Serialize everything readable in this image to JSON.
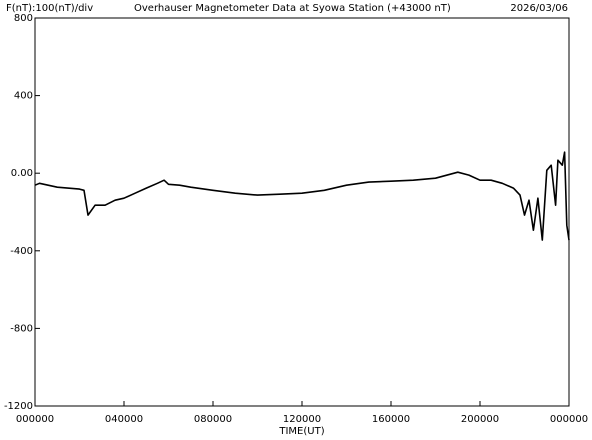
{
  "chart_data": {
    "type": "line",
    "unit_note": "F(nT):100(nT)/div",
    "title": "Overhauser Magnetometer Data at Syowa Station (+43000 nT)",
    "date": "2026/03/06",
    "x_label": "TIME(UT)",
    "x": [
      0,
      0.2,
      1,
      2,
      2.2,
      2.38,
      2.7,
      3.15,
      3.6,
      4,
      4.5,
      5,
      5.5,
      5.8,
      6,
      6.5,
      7,
      8,
      9,
      10,
      11,
      12,
      13,
      14,
      15,
      16,
      17,
      18,
      19,
      19.5,
      20,
      20.5,
      21,
      21.5,
      21.8,
      22,
      22.2,
      22.4,
      22.6,
      22.8,
      23,
      23.2,
      23.4,
      23.5,
      23.7,
      23.8,
      23.9,
      24
    ],
    "series": [
      {
        "color": "#000000",
        "values": [
          -62,
          -52,
          -72,
          -82,
          -88,
          -216,
          -165,
          -165,
          -139,
          -129,
          -103,
          -77,
          -52,
          -36,
          -57,
          -62,
          -72,
          -88,
          -103,
          -113,
          -108,
          -103,
          -88,
          -62,
          -46,
          -41,
          -36,
          -26,
          5,
          -10,
          -36,
          -36,
          -52,
          -77,
          -113,
          -216,
          -139,
          -294,
          -129,
          -345,
          15,
          41,
          -165,
          67,
          41,
          108,
          -268,
          -345
        ]
      }
    ],
    "xlim": [
      0,
      24
    ],
    "xticks": [
      {
        "value": 0,
        "label": "000000"
      },
      {
        "value": 4,
        "label": "040000"
      },
      {
        "value": 8,
        "label": "080000"
      },
      {
        "value": 12,
        "label": "120000"
      },
      {
        "value": 16,
        "label": "160000"
      },
      {
        "value": 20,
        "label": "200000"
      },
      {
        "value": 24,
        "label": "000000"
      }
    ],
    "ylim": [
      -1200,
      800
    ],
    "yticks": [
      800,
      400,
      {
        "value": 0,
        "label": "0.00"
      },
      -400,
      -800,
      -1200
    ]
  }
}
